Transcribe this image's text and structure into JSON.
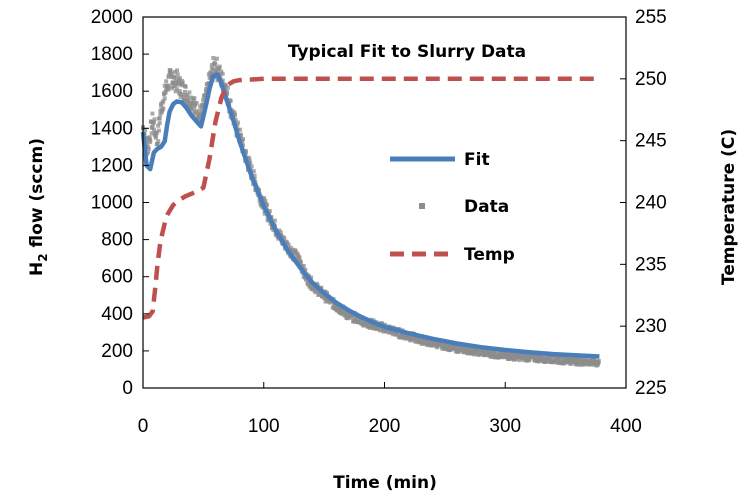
{
  "chart_data": {
    "type": "line",
    "title": "Typical Fit to Slurry Data",
    "xlabel": "Time (min)",
    "ylabel": "H2 flow (sccm)",
    "ylabel_main": "H",
    "ylabel_sub": "2",
    "ylabel_rest": " flow (sccm)",
    "y2label": "Temperature (C)",
    "xlim": [
      0,
      400
    ],
    "ylim": [
      0,
      2000
    ],
    "y2lim": [
      225,
      255
    ],
    "x_ticks": [
      "0",
      "100",
      "200",
      "300",
      "400"
    ],
    "y_ticks": [
      "0",
      "200",
      "400",
      "600",
      "800",
      "1000",
      "1200",
      "1400",
      "1600",
      "1800",
      "2000"
    ],
    "y2_ticks": [
      "225",
      "230",
      "235",
      "240",
      "245",
      "250",
      "255"
    ],
    "grid": false,
    "legend_position": "center-right",
    "legend": [
      {
        "label": "Fit",
        "style": "solid"
      },
      {
        "label": "Data",
        "style": "marker"
      },
      {
        "label": "Temp",
        "style": "dashed"
      }
    ],
    "series": [
      {
        "name": "Fit",
        "axis": "left",
        "color": "#4a7ebb",
        "x": [
          0,
          3,
          6,
          9,
          12,
          15,
          18,
          20,
          22,
          25,
          28,
          32,
          36,
          40,
          44,
          48,
          52,
          55,
          58,
          62,
          66,
          70,
          75,
          80,
          90,
          100,
          110,
          120,
          130,
          140,
          150,
          160,
          170,
          180,
          190,
          200,
          220,
          240,
          260,
          280,
          300,
          320,
          340,
          360,
          378
        ],
        "y": [
          1380,
          1200,
          1180,
          1270,
          1290,
          1300,
          1330,
          1420,
          1490,
          1530,
          1545,
          1540,
          1510,
          1470,
          1440,
          1410,
          1520,
          1610,
          1680,
          1690,
          1620,
          1540,
          1440,
          1330,
          1140,
          980,
          850,
          740,
          650,
          570,
          510,
          460,
          420,
          385,
          355,
          330,
          295,
          265,
          240,
          220,
          205,
          193,
          183,
          176,
          170
        ]
      },
      {
        "name": "Data",
        "axis": "left",
        "color": "#8c8c8c",
        "x": [
          0,
          2,
          4,
          6,
          8,
          10,
          12,
          14,
          16,
          18,
          20,
          22,
          24,
          26,
          28,
          30,
          33,
          36,
          40,
          44,
          48,
          52,
          55,
          58,
          60,
          62,
          64,
          66,
          68,
          70,
          73,
          76,
          80,
          85,
          90,
          95,
          100,
          105,
          110,
          115,
          120,
          125,
          130,
          135,
          140,
          145,
          150,
          155,
          160,
          165,
          170,
          175,
          180,
          185,
          190,
          195,
          200,
          210,
          220,
          230,
          240,
          250,
          260,
          270,
          280,
          290,
          300,
          310,
          320,
          330,
          340,
          350,
          360,
          370,
          378
        ],
        "y": [
          1400,
          1350,
          1290,
          1370,
          1440,
          1390,
          1330,
          1470,
          1540,
          1580,
          1640,
          1660,
          1670,
          1650,
          1660,
          1630,
          1610,
          1580,
          1550,
          1500,
          1470,
          1560,
          1650,
          1720,
          1740,
          1710,
          1680,
          1650,
          1630,
          1580,
          1500,
          1430,
          1360,
          1250,
          1160,
          1070,
          990,
          920,
          860,
          800,
          760,
          720,
          680,
          600,
          560,
          530,
          500,
          470,
          440,
          420,
          390,
          380,
          370,
          350,
          345,
          330,
          325,
          300,
          280,
          260,
          245,
          230,
          215,
          205,
          195,
          185,
          175,
          170,
          165,
          160,
          155,
          150,
          145,
          140,
          135
        ]
      },
      {
        "name": "Temp",
        "axis": "right",
        "color": "#c0504d",
        "x": [
          0,
          5,
          8,
          10,
          12,
          14,
          16,
          18,
          20,
          25,
          30,
          35,
          40,
          45,
          50,
          55,
          60,
          65,
          70,
          75,
          80,
          90,
          100,
          150,
          200,
          250,
          300,
          350,
          378
        ],
        "y": [
          230.7,
          230.8,
          231.2,
          233.0,
          235.0,
          236.5,
          237.5,
          238.3,
          239.0,
          239.8,
          240.2,
          240.5,
          240.7,
          240.9,
          241.2,
          243.5,
          246.5,
          248.5,
          249.5,
          249.8,
          249.9,
          249.95,
          250.0,
          250.0,
          250.0,
          250.0,
          250.0,
          250.0,
          250.0
        ]
      }
    ]
  }
}
